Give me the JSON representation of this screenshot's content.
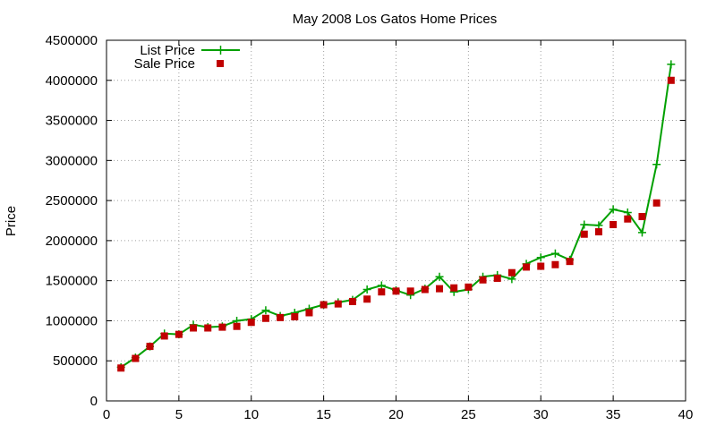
{
  "chart_data": {
    "type": "line",
    "title": "May 2008 Los Gatos Home Prices",
    "xlabel": "",
    "ylabel": "Price",
    "xlim": [
      0,
      40
    ],
    "ylim": [
      0,
      4500000
    ],
    "x_ticks": [
      "0",
      "5",
      "10",
      "15",
      "20",
      "25",
      "30",
      "35",
      "40"
    ],
    "y_ticks": [
      "0",
      "500000",
      "1000000",
      "1500000",
      "2000000",
      "2500000",
      "3000000",
      "3500000",
      "4000000",
      "4500000"
    ],
    "grid": true,
    "legend_position": "top-left",
    "series": [
      {
        "name": "List Price",
        "style": "line-with-plus-markers",
        "color": "#00a000",
        "x": [
          1,
          2,
          3,
          4,
          5,
          6,
          7,
          8,
          9,
          10,
          11,
          12,
          13,
          14,
          15,
          16,
          17,
          18,
          19,
          20,
          21,
          22,
          23,
          24,
          25,
          26,
          27,
          28,
          29,
          30,
          31,
          32,
          33,
          34,
          35,
          36,
          37,
          38,
          39
        ],
        "values": [
          420000,
          540000,
          680000,
          840000,
          830000,
          950000,
          920000,
          930000,
          1000000,
          1020000,
          1130000,
          1060000,
          1100000,
          1150000,
          1200000,
          1230000,
          1260000,
          1390000,
          1440000,
          1380000,
          1320000,
          1400000,
          1550000,
          1360000,
          1390000,
          1550000,
          1570000,
          1520000,
          1710000,
          1790000,
          1840000,
          1760000,
          2200000,
          2190000,
          2390000,
          2350000,
          2100000,
          2950000,
          4200000
        ]
      },
      {
        "name": "Sale Price",
        "style": "square-markers",
        "color": "#c00000",
        "x": [
          1,
          2,
          3,
          4,
          5,
          6,
          7,
          8,
          9,
          10,
          11,
          12,
          13,
          14,
          15,
          16,
          17,
          18,
          19,
          20,
          21,
          22,
          23,
          24,
          25,
          26,
          27,
          28,
          29,
          30,
          31,
          32,
          33,
          34,
          35,
          36,
          37,
          38,
          39
        ],
        "values": [
          410000,
          530000,
          680000,
          810000,
          830000,
          910000,
          910000,
          920000,
          930000,
          980000,
          1030000,
          1040000,
          1050000,
          1100000,
          1200000,
          1210000,
          1240000,
          1270000,
          1360000,
          1370000,
          1370000,
          1390000,
          1400000,
          1410000,
          1420000,
          1510000,
          1530000,
          1600000,
          1670000,
          1680000,
          1700000,
          1740000,
          2080000,
          2110000,
          2200000,
          2270000,
          2300000,
          2470000,
          4000000
        ]
      }
    ]
  }
}
